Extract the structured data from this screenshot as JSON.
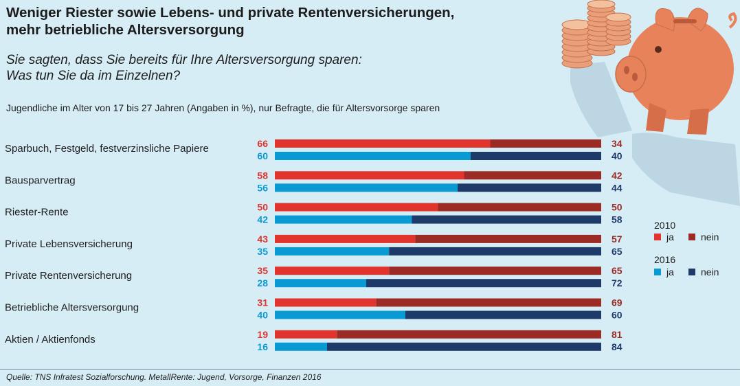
{
  "title_line1": "Weniger Riester sowie Lebens- und private Rentenversicherungen,",
  "title_line2": "mehr betriebliche Altersversorgung",
  "subtitle_line1": "Sie sagten, dass Sie bereits für Ihre Altersversorgung sparen:",
  "subtitle_line2": "Was tun Sie da im Einzelnen?",
  "note": "Jugendliche im Alter von 17 bis 27 Jahren (Angaben in %), nur Befragte, die für Altersvorsorge sparen",
  "source": "Quelle: TNS Infratest Sozialforschung. MetallRente: Jugend, Vorsorge, Finanzen 2016",
  "colors": {
    "ja_2010": "#e0342d",
    "nein_2010": "#9b2b24",
    "ja_2016": "#0a9ad3",
    "nein_2016": "#1e3a68",
    "background": "#d7edf6"
  },
  "chart_data": {
    "type": "bar",
    "stacked": true,
    "orientation": "horizontal",
    "categories": [
      "Sparbuch, Festgeld, festverzinsliche Papiere",
      "Bausparvertrag",
      "Riester-Rente",
      "Private Lebensversicherung",
      "Private Rentenversicherung",
      "Betriebliche Altersversorgung",
      "Aktien / Aktienfonds"
    ],
    "series": [
      {
        "year": "2010",
        "ja": [
          66,
          58,
          50,
          43,
          35,
          31,
          19
        ],
        "nein": [
          34,
          42,
          50,
          57,
          65,
          69,
          81
        ]
      },
      {
        "year": "2016",
        "ja": [
          60,
          56,
          42,
          35,
          28,
          40,
          16
        ],
        "nein": [
          40,
          44,
          58,
          65,
          72,
          60,
          84
        ]
      }
    ],
    "xlim": [
      0,
      100
    ],
    "legend": {
      "position": "right",
      "groups": [
        {
          "year": "2010",
          "ja_label": "ja",
          "nein_label": "nein"
        },
        {
          "year": "2016",
          "ja_label": "ja",
          "nein_label": "nein"
        }
      ]
    },
    "grid": false
  }
}
